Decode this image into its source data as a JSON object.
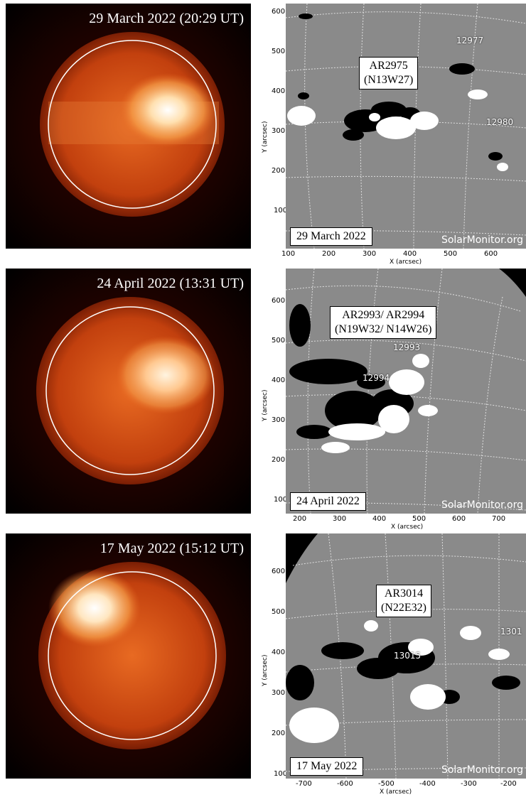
{
  "panels": [
    {
      "left_title": "29 March 2022  (20:29 UT)",
      "ar_line1": "AR2975",
      "ar_line2": "(N13W27)",
      "date_label": "29 March 2022",
      "watermark": "SolarMonitor.org",
      "region_labels": [
        "12977",
        "12980"
      ],
      "x_ticks": [
        "100",
        "200",
        "300",
        "400",
        "500",
        "600"
      ],
      "y_ticks": [
        "600",
        "500",
        "400",
        "300",
        "200",
        "100"
      ],
      "x_axis_label": "X (arcsec)",
      "y_axis_label": "Y (arcsec)"
    },
    {
      "left_title": "24 April 2022  (13:31 UT)",
      "ar_line1": "AR2993/ AR2994",
      "ar_line2": "(N19W32/ N14W26)",
      "date_label": "24 April 2022",
      "watermark": "SolarMonitor.org",
      "region_labels": [
        "12993",
        "12994"
      ],
      "x_ticks": [
        "200",
        "300",
        "400",
        "500",
        "600",
        "700"
      ],
      "y_ticks": [
        "600",
        "500",
        "400",
        "300",
        "200",
        "100"
      ],
      "x_axis_label": "X (arcsec)",
      "y_axis_label": "Y (arcsec)"
    },
    {
      "left_title": "17 May 2022  (15:12 UT)",
      "ar_line1": "AR3014",
      "ar_line2": "(N22E32)",
      "date_label": "17 May 2022",
      "watermark": "SolarMonitor.org",
      "region_labels": [
        "13015",
        "1301"
      ],
      "x_ticks": [
        "-700",
        "-600",
        "-500",
        "-400",
        "-300",
        "-200"
      ],
      "y_ticks": [
        "600",
        "500",
        "400",
        "300",
        "200",
        "100"
      ],
      "x_axis_label": "X (arcsec)",
      "y_axis_label": "Y (arcsec)"
    }
  ]
}
